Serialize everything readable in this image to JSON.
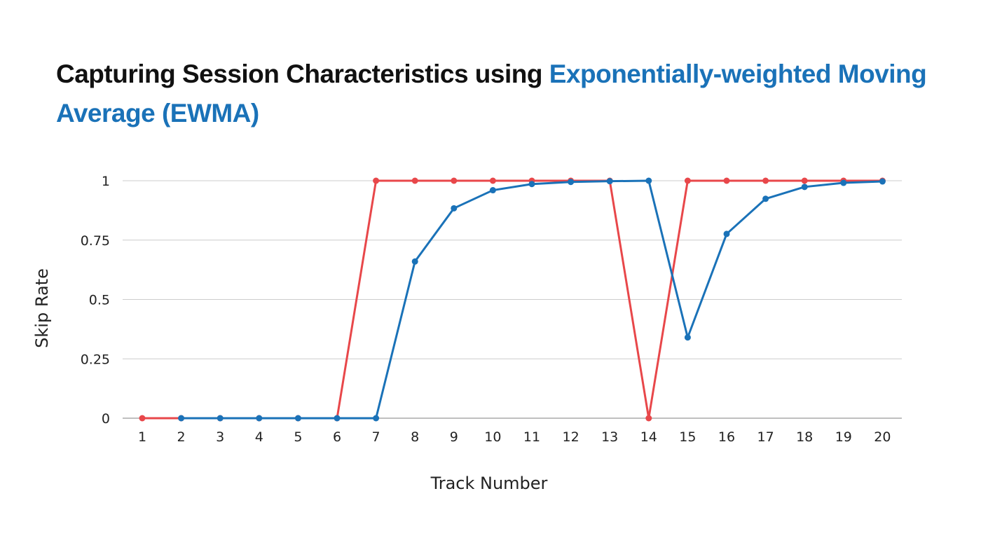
{
  "header": {
    "title_part1": "Capturing Session Characteristics using ",
    "title_part2": "Exponentially-weighted Moving Average (EWMA)"
  },
  "colors": {
    "title_dark": "#111111",
    "title_accent": "#1a72b8",
    "series_red": "#e8474a",
    "series_blue": "#1a72b8",
    "grid": "#cccccc"
  },
  "chart_data": {
    "type": "line",
    "xlabel": "Track Number",
    "ylabel": "Skip Rate",
    "x": [
      1,
      2,
      3,
      4,
      5,
      6,
      7,
      8,
      9,
      10,
      11,
      12,
      13,
      14,
      15,
      16,
      17,
      18,
      19,
      20
    ],
    "ylim": [
      0,
      1
    ],
    "yticks": [
      0,
      0.25,
      0.5,
      0.75,
      1
    ],
    "ytick_labels": [
      "0",
      "0.25",
      "0.5",
      "0.75",
      "1"
    ],
    "grid": true,
    "legend": "none",
    "series": [
      {
        "color": "#e8474a",
        "values": [
          0,
          0,
          0,
          0,
          0,
          0,
          1,
          1,
          1,
          1,
          1,
          1,
          1,
          0,
          1,
          1,
          1,
          1,
          1,
          1
        ]
      },
      {
        "color": "#1a72b8",
        "x": [
          2,
          3,
          4,
          5,
          6,
          7,
          8,
          9,
          10,
          11,
          12,
          13,
          14,
          15,
          16,
          17,
          18,
          19,
          20
        ],
        "values": [
          0,
          0,
          0,
          0,
          0,
          0,
          0.66,
          0.884,
          0.96,
          0.986,
          0.995,
          0.998,
          1,
          0.34,
          0.776,
          0.924,
          0.974,
          0.991,
          0.997
        ]
      }
    ]
  }
}
